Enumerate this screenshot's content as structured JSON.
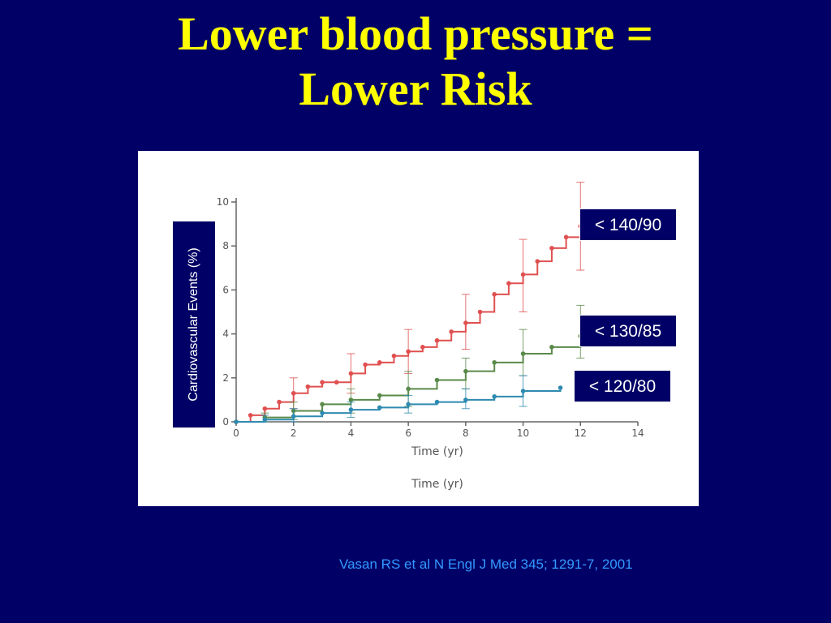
{
  "slide": {
    "title_line1": "Lower blood pressure =",
    "title_line2": "Lower Risk",
    "citation": "Vasan RS et al N Engl J Med 345; 1291-7, 2001"
  },
  "chart_data": {
    "type": "line",
    "xlabel": "Time (yr)",
    "ylabel": "Cardiovascular Events (%)",
    "xlim": [
      0,
      14
    ],
    "ylim": [
      0,
      10
    ],
    "xticks": [
      0,
      2,
      4,
      6,
      8,
      10,
      12,
      14
    ],
    "yticks": [
      0,
      2,
      4,
      6,
      8,
      10
    ],
    "legend_placement": "right",
    "grid": false,
    "series": [
      {
        "name": "< 140/90",
        "color": "#e05050",
        "x": [
          0,
          0.5,
          1,
          1.5,
          2,
          2.5,
          3,
          3.5,
          4,
          4.5,
          5,
          5.5,
          6,
          6.5,
          7,
          7.5,
          8,
          8.5,
          9,
          9.5,
          10,
          10.5,
          11,
          11.5,
          12
        ],
        "y": [
          0,
          0.3,
          0.6,
          0.9,
          1.3,
          1.6,
          1.8,
          1.8,
          2.2,
          2.6,
          2.7,
          3.0,
          3.2,
          3.4,
          3.7,
          4.1,
          4.5,
          5.0,
          5.8,
          6.3,
          6.7,
          7.3,
          7.9,
          8.4,
          8.9
        ],
        "error_bars": [
          {
            "x": 2,
            "y": 1.3,
            "low": 0.6,
            "high": 2.0
          },
          {
            "x": 4,
            "y": 2.2,
            "low": 1.3,
            "high": 3.1
          },
          {
            "x": 6,
            "y": 3.2,
            "low": 2.2,
            "high": 4.2
          },
          {
            "x": 8,
            "y": 4.5,
            "low": 3.3,
            "high": 5.8
          },
          {
            "x": 10,
            "y": 6.7,
            "low": 5.0,
            "high": 8.3
          },
          {
            "x": 12,
            "y": 8.9,
            "low": 6.9,
            "high": 10.9
          }
        ]
      },
      {
        "name": "< 130/85",
        "color": "#5a8a4a",
        "x": [
          0,
          1,
          2,
          3,
          4,
          5,
          6,
          7,
          8,
          9,
          10,
          11,
          12
        ],
        "y": [
          0,
          0.2,
          0.5,
          0.8,
          1.0,
          1.2,
          1.5,
          1.9,
          2.3,
          2.7,
          3.1,
          3.4,
          3.9
        ],
        "error_bars": [
          {
            "x": 1,
            "y": 0.2,
            "low": 0.0,
            "high": 0.4
          },
          {
            "x": 2,
            "y": 0.5,
            "low": 0.1,
            "high": 0.9
          },
          {
            "x": 4,
            "y": 1.0,
            "low": 0.4,
            "high": 1.5
          },
          {
            "x": 6,
            "y": 1.5,
            "low": 0.7,
            "high": 2.3
          },
          {
            "x": 8,
            "y": 2.3,
            "low": 1.5,
            "high": 2.9
          },
          {
            "x": 10,
            "y": 3.1,
            "low": 2.1,
            "high": 4.2
          },
          {
            "x": 12,
            "y": 3.9,
            "low": 2.9,
            "high": 5.3
          }
        ]
      },
      {
        "name": "< 120/80",
        "color": "#2f8ab0",
        "x": [
          0,
          1,
          2,
          3,
          4,
          5,
          6,
          7,
          8,
          9,
          10,
          11.3
        ],
        "y": [
          0,
          0.1,
          0.25,
          0.4,
          0.55,
          0.65,
          0.8,
          0.9,
          1.0,
          1.15,
          1.4,
          1.55
        ],
        "error_bars": [
          {
            "x": 1,
            "y": 0.1,
            "low": 0.0,
            "high": 0.3
          },
          {
            "x": 2,
            "y": 0.25,
            "low": 0.0,
            "high": 0.6
          },
          {
            "x": 4,
            "y": 0.55,
            "low": 0.2,
            "high": 0.9
          },
          {
            "x": 6,
            "y": 0.8,
            "low": 0.4,
            "high": 1.2
          },
          {
            "x": 8,
            "y": 1.0,
            "low": 0.6,
            "high": 1.5
          },
          {
            "x": 10,
            "y": 1.4,
            "low": 0.7,
            "high": 2.1
          }
        ]
      }
    ]
  }
}
